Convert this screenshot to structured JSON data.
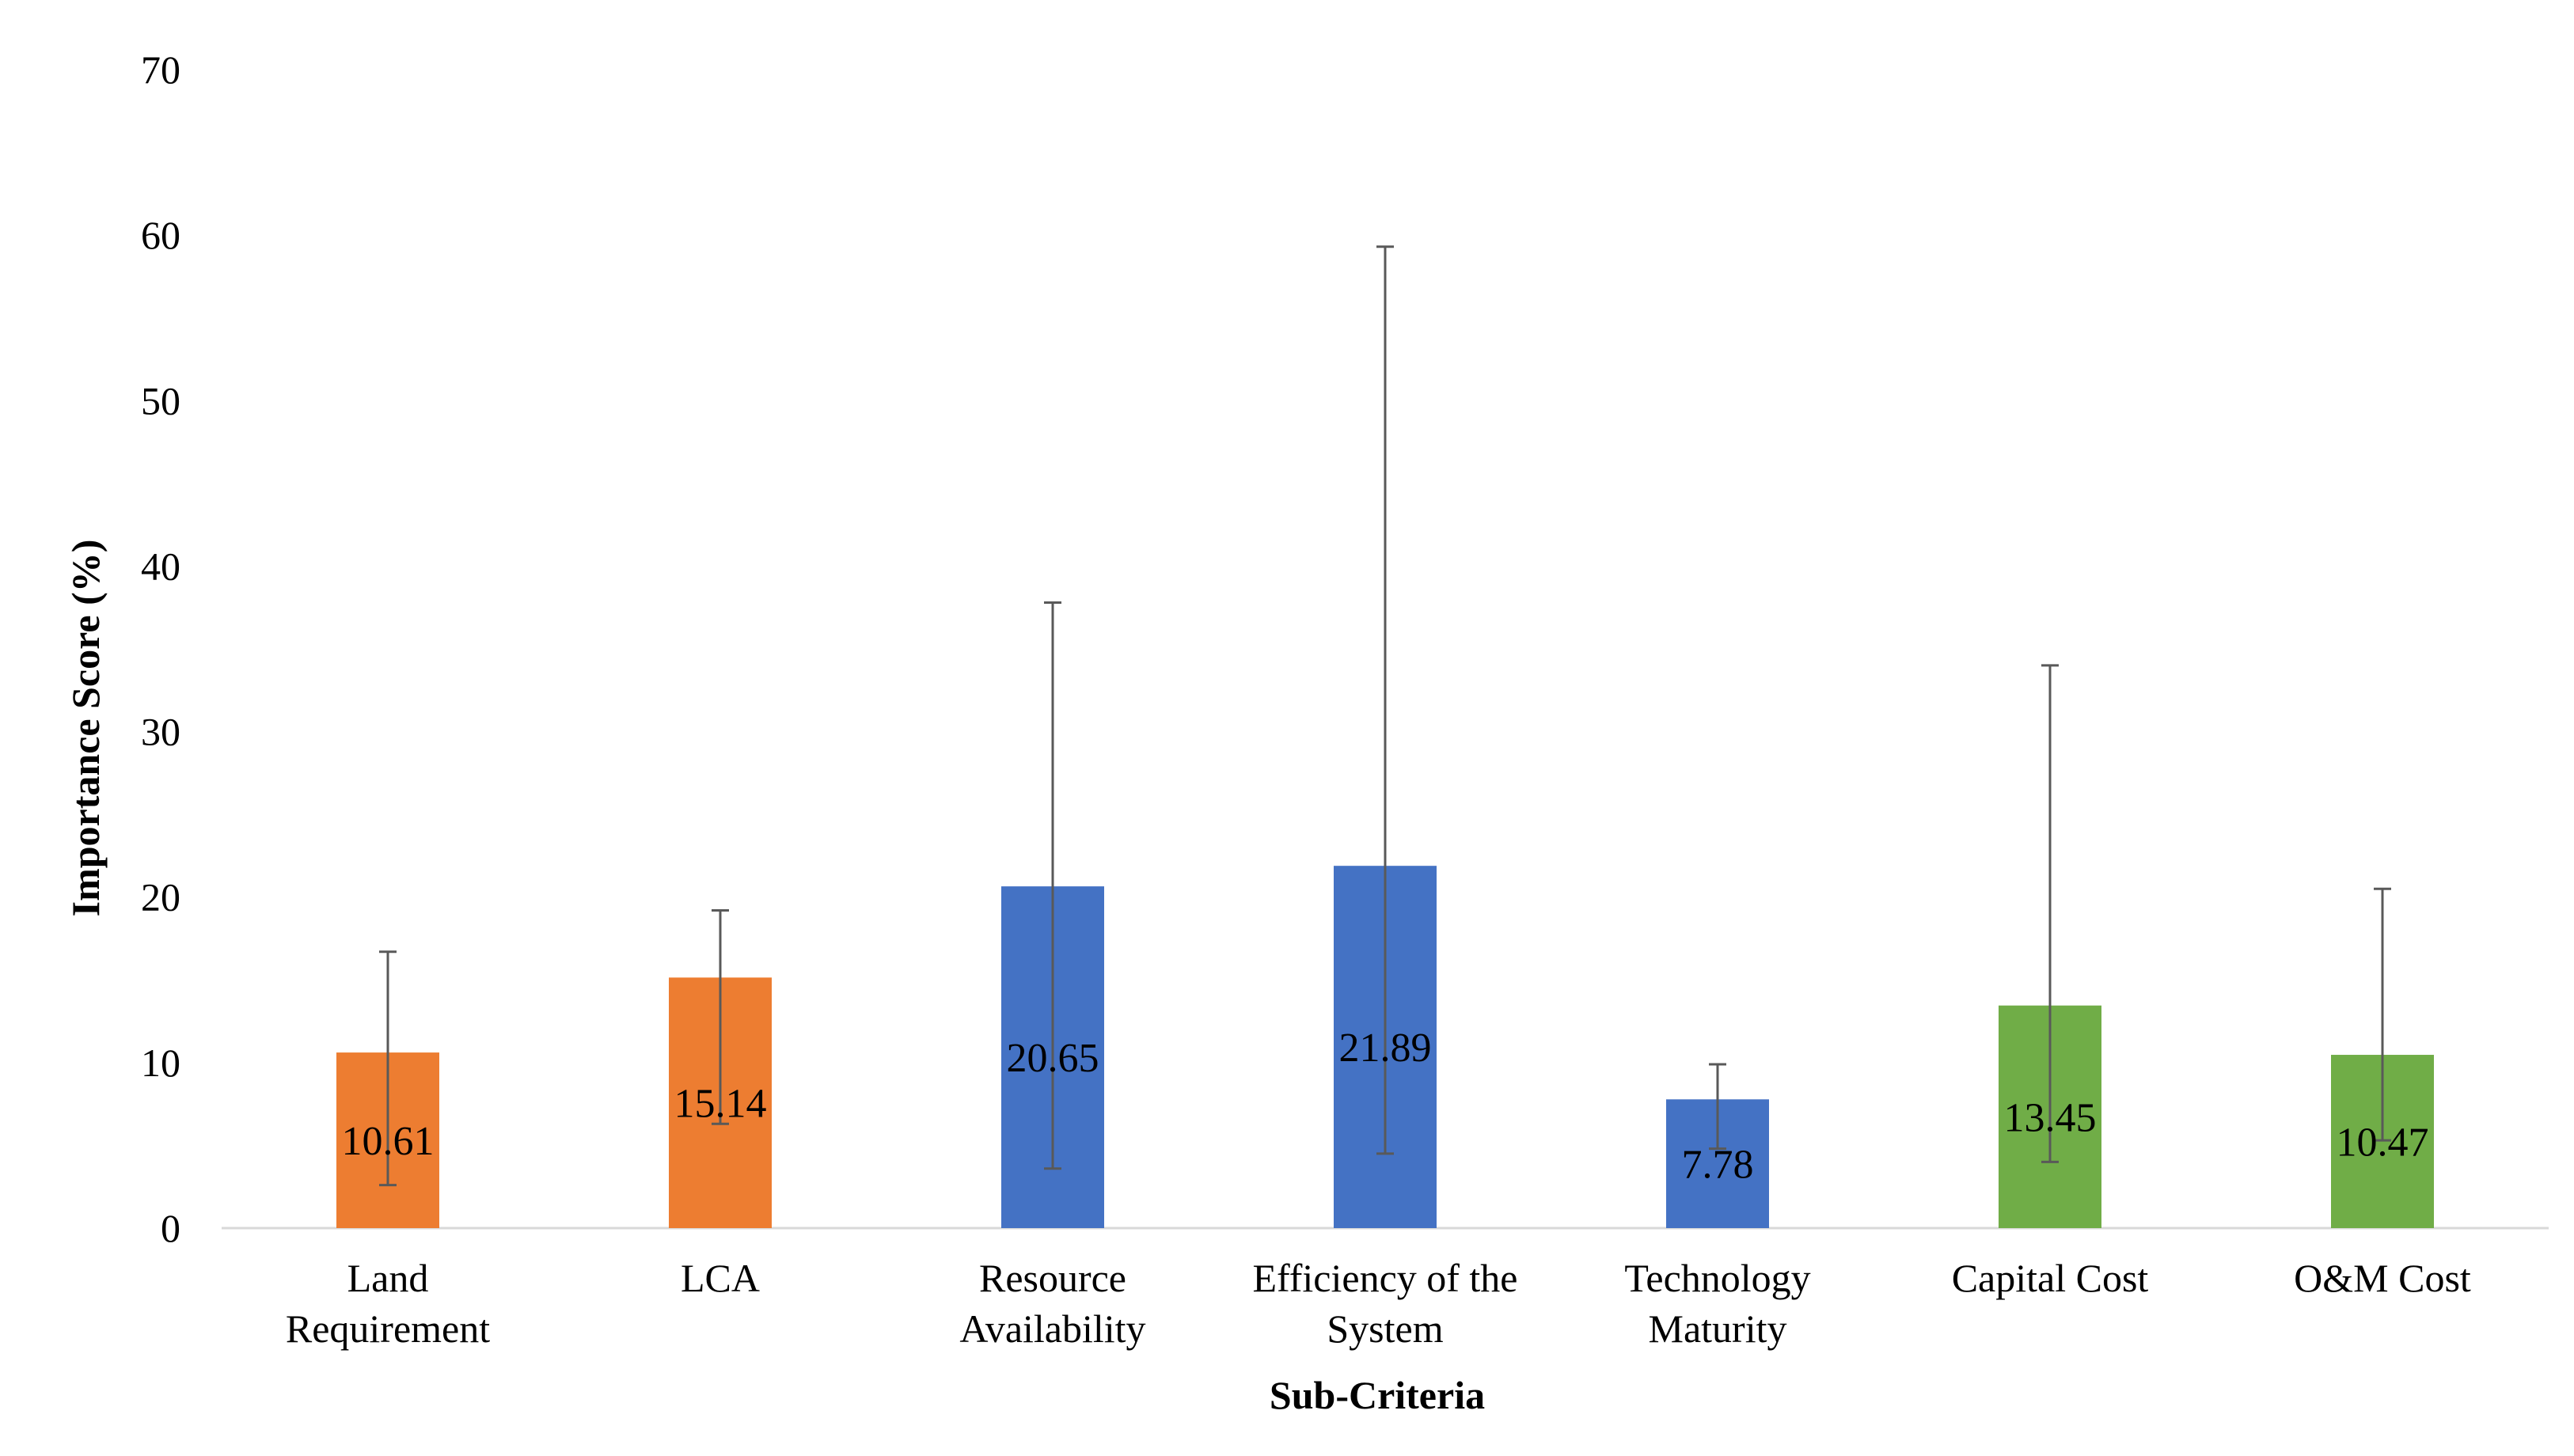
{
  "chart_data": {
    "type": "bar",
    "title": "",
    "xlabel": "Sub-Criteria",
    "ylabel": "Importance Score (%)",
    "ylim": [
      0,
      70
    ],
    "yticks": [
      0,
      10,
      20,
      30,
      40,
      50,
      60,
      70
    ],
    "ytick_labels": [
      "0",
      "10",
      "20",
      "30",
      "40",
      "50",
      "60",
      "70"
    ],
    "grid": false,
    "categories": [
      [
        "Land",
        "Requirement"
      ],
      [
        "LCA"
      ],
      [
        "Resource",
        "Availability"
      ],
      [
        "Efficiency of the",
        "System"
      ],
      [
        "Technology",
        "Maturity"
      ],
      [
        "Capital Cost"
      ],
      [
        "O&M Cost"
      ]
    ],
    "values": [
      10.61,
      15.14,
      20.65,
      21.89,
      7.78,
      13.45,
      10.47
    ],
    "value_labels": [
      "10.61",
      "15.14",
      "20.65",
      "21.89",
      "7.78",
      "13.45",
      "10.47"
    ],
    "error_bars": [
      {
        "low": 2.6,
        "high": 16.7
      },
      {
        "low": 6.3,
        "high": 19.2
      },
      {
        "low": 3.6,
        "high": 37.8
      },
      {
        "low": 4.5,
        "high": 59.3
      },
      {
        "low": 4.8,
        "high": 9.9
      },
      {
        "low": 4.0,
        "high": 34.0
      },
      {
        "low": 5.3,
        "high": 20.5
      }
    ],
    "bar_colors": [
      "#ED7D31",
      "#ED7D31",
      "#4472C4",
      "#4472C4",
      "#4472C4",
      "#70AD47",
      "#70AD47"
    ],
    "axis_color": "#D9D9D9",
    "error_color": "#595959"
  }
}
